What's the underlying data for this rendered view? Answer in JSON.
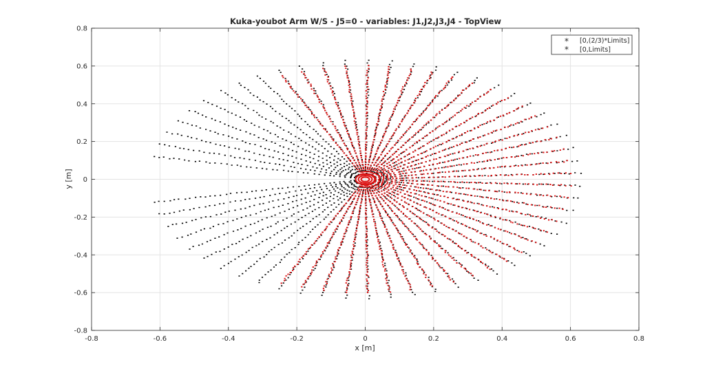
{
  "chart_data": {
    "type": "scatter",
    "title": "Kuka-youbot Arm W/S - J5=0 - variables: J1,J2,J3,J4 - TopView",
    "xlabel": "x [m]",
    "ylabel": "y [m]",
    "xlim": [
      -0.8,
      0.8
    ],
    "ylim": [
      -0.8,
      0.8
    ],
    "xticks": [
      "-0.8",
      "-0.6",
      "-0.4",
      "-0.2",
      "0",
      "0.2",
      "0.4",
      "0.6",
      "0.8"
    ],
    "yticks": [
      "0.8",
      "0.6",
      "0.4",
      "0.2",
      "0",
      "-0.2",
      "-0.4",
      "-0.6",
      "-0.8"
    ],
    "grid": true,
    "legend_position": "top-right",
    "series": [
      {
        "name": "[0,(2/3)*Limits]",
        "color": "#dd1111",
        "marker": "*",
        "angle_range_deg": [
          -114,
          114
        ],
        "radius_range": [
          0.03,
          0.6
        ]
      },
      {
        "name": "[0,Limits]",
        "color": "#000000",
        "marker": "*",
        "angle_range_deg": [
          -169,
          169
        ],
        "radius_range": [
          0.03,
          0.63
        ]
      }
    ]
  }
}
